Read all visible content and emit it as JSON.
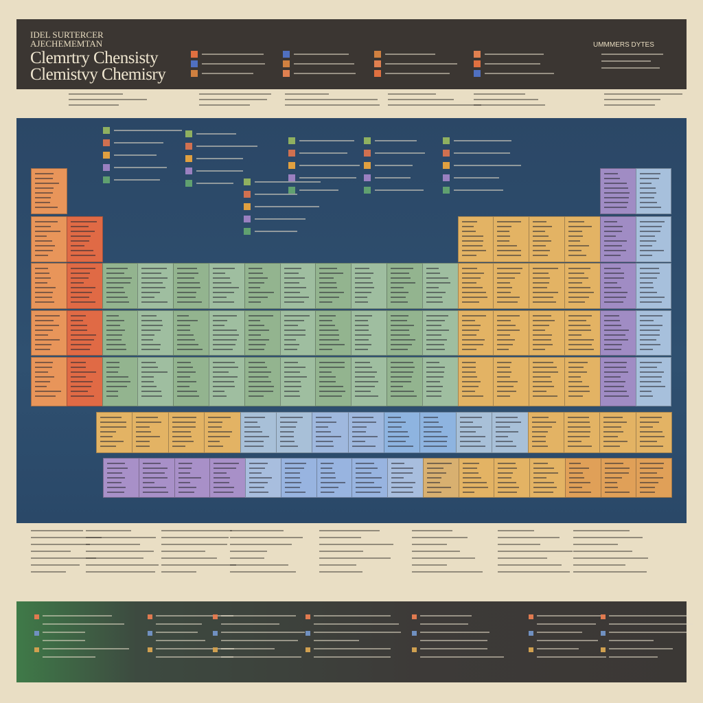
{
  "header": {
    "kicker_line1": "IDEL SURTERCER",
    "kicker_line2": "AJECHEMEMTAN",
    "title_line1": "Clemrtry Chensisty",
    "title_line2": "Clemistvy Chemisry",
    "badge": "UMMMERS DYTES"
  }
}
